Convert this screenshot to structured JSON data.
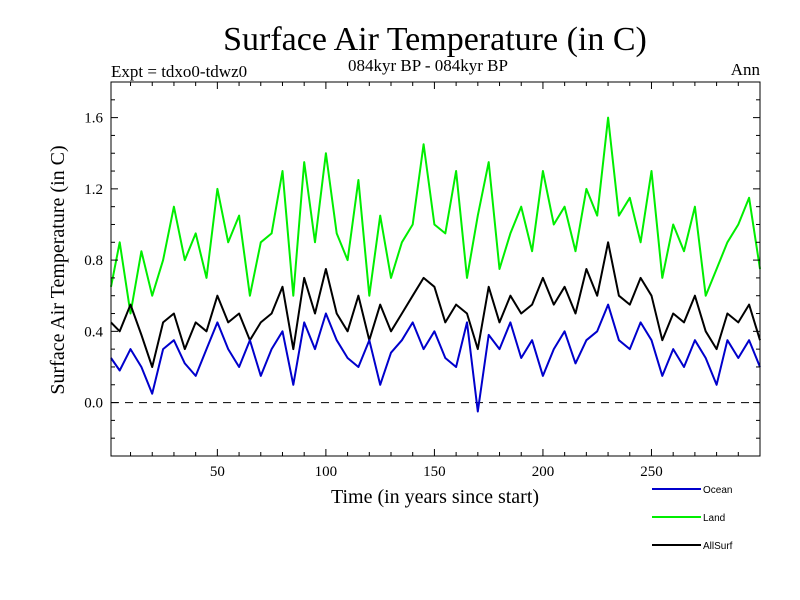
{
  "chart_data": {
    "type": "line",
    "title": "Surface Air Temperature (in C)",
    "subtitle": "084kyr BP - 084kyr BP",
    "left_note": "Expt = tdxo0-tdwz0",
    "right_note": "Ann",
    "xlabel": "Time (in years since start)",
    "ylabel": "Surface Air Temperature (in C)",
    "xlim": [
      1,
      300
    ],
    "ylim": [
      -0.3,
      1.8
    ],
    "xticks": [
      50,
      100,
      150,
      200,
      250
    ],
    "xtick_labels": [
      "50",
      "100",
      "150",
      "200",
      "250"
    ],
    "yticks": [
      0.0,
      0.4,
      0.8,
      1.2,
      1.6
    ],
    "ytick_labels": [
      "0.0",
      "0.4",
      "0.8",
      "1.2",
      "1.6"
    ],
    "zero_line": true,
    "grid": false,
    "legend_position": "bottom-right",
    "x": [
      1,
      5,
      10,
      15,
      20,
      25,
      30,
      35,
      40,
      45,
      50,
      55,
      60,
      65,
      70,
      75,
      80,
      85,
      90,
      95,
      100,
      105,
      110,
      115,
      120,
      125,
      130,
      135,
      140,
      145,
      150,
      155,
      160,
      165,
      170,
      175,
      180,
      185,
      190,
      195,
      200,
      205,
      210,
      215,
      220,
      225,
      230,
      235,
      240,
      245,
      250,
      255,
      260,
      265,
      270,
      275,
      280,
      285,
      290,
      295,
      300
    ],
    "series": [
      {
        "name": "Ocean",
        "color": "#0000cc",
        "values": [
          0.25,
          0.18,
          0.3,
          0.2,
          0.05,
          0.3,
          0.35,
          0.22,
          0.15,
          0.3,
          0.45,
          0.3,
          0.2,
          0.35,
          0.15,
          0.3,
          0.4,
          0.1,
          0.45,
          0.3,
          0.5,
          0.35,
          0.25,
          0.2,
          0.35,
          0.1,
          0.28,
          0.35,
          0.45,
          0.3,
          0.4,
          0.25,
          0.2,
          0.45,
          -0.05,
          0.38,
          0.3,
          0.45,
          0.25,
          0.35,
          0.15,
          0.3,
          0.4,
          0.22,
          0.35,
          0.4,
          0.55,
          0.35,
          0.3,
          0.45,
          0.35,
          0.15,
          0.3,
          0.2,
          0.35,
          0.25,
          0.1,
          0.35,
          0.25,
          0.35,
          0.2
        ]
      },
      {
        "name": "Land",
        "color": "#00ee00",
        "values": [
          0.65,
          0.9,
          0.5,
          0.85,
          0.6,
          0.8,
          1.1,
          0.8,
          0.95,
          0.7,
          1.2,
          0.9,
          1.05,
          0.6,
          0.9,
          0.95,
          1.3,
          0.6,
          1.35,
          0.9,
          1.4,
          0.95,
          0.8,
          1.25,
          0.6,
          1.05,
          0.7,
          0.9,
          1.0,
          1.45,
          1.0,
          0.95,
          1.3,
          0.7,
          1.05,
          1.35,
          0.75,
          0.95,
          1.1,
          0.85,
          1.3,
          1.0,
          1.1,
          0.85,
          1.2,
          1.05,
          1.6,
          1.05,
          1.15,
          0.9,
          1.3,
          0.7,
          1.0,
          0.85,
          1.1,
          0.6,
          0.75,
          0.9,
          1.0,
          1.15,
          0.75
        ]
      },
      {
        "name": "AllSurf",
        "color": "#000000",
        "values": [
          0.45,
          0.4,
          0.55,
          0.38,
          0.2,
          0.45,
          0.5,
          0.3,
          0.45,
          0.4,
          0.6,
          0.45,
          0.5,
          0.35,
          0.45,
          0.5,
          0.65,
          0.3,
          0.7,
          0.5,
          0.75,
          0.5,
          0.4,
          0.6,
          0.35,
          0.55,
          0.4,
          0.5,
          0.6,
          0.7,
          0.65,
          0.45,
          0.55,
          0.5,
          0.3,
          0.65,
          0.45,
          0.6,
          0.5,
          0.55,
          0.7,
          0.55,
          0.65,
          0.5,
          0.75,
          0.6,
          0.9,
          0.6,
          0.55,
          0.7,
          0.6,
          0.35,
          0.5,
          0.45,
          0.6,
          0.4,
          0.3,
          0.5,
          0.45,
          0.55,
          0.35
        ]
      }
    ]
  }
}
